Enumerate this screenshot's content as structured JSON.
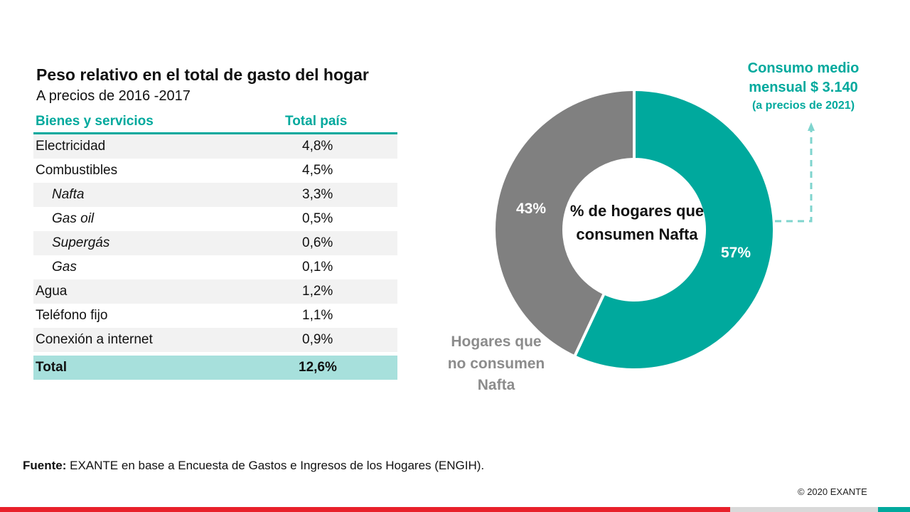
{
  "table": {
    "title": "Peso relativo en el total de gasto del hogar",
    "subtitle": "A precios de 2016 -2017",
    "headers": [
      "Bienes y servicios",
      "Total país"
    ],
    "rows": [
      {
        "label": "Electricidad",
        "value": "4,8%"
      },
      {
        "label": "Combustibles",
        "value": "4,5%"
      },
      {
        "label": "Nafta",
        "value": "3,3%"
      },
      {
        "label": "Gas oil",
        "value": "0,5%"
      },
      {
        "label": "Supergás",
        "value": "0,6%"
      },
      {
        "label": "Gas",
        "value": "0,1%"
      },
      {
        "label": "Agua",
        "value": "1,2%"
      },
      {
        "label": "Teléfono fijo",
        "value": "1,1%"
      },
      {
        "label": "Conexión a internet",
        "value": "0,9%"
      }
    ],
    "total": {
      "label": "Total",
      "value": "12,6%"
    }
  },
  "chart_data": {
    "type": "pie",
    "title": "% de hogares que consumen Nafta",
    "slices": [
      {
        "label": "57%",
        "value": 57,
        "color": "#00a99d"
      },
      {
        "label": "43%",
        "value": 43,
        "color": "#808080"
      }
    ],
    "annotations": {
      "non_consumers": "Hogares que no consumen Nafta",
      "callout_line1": "Consumo medio",
      "callout_line2": "mensual $ 3.140",
      "callout_line3": "(a precios de 2021)"
    }
  },
  "footer": {
    "source_label": "Fuente:",
    "source_text": "EXANTE en base a Encuesta de Gastos e Ingresos de los Hogares (ENGIH).",
    "copyright": "© 2020 EXANTE"
  },
  "colors": {
    "accent": "#00a99d",
    "accent_light": "#a7e0dc",
    "gray_slice": "#808080",
    "label_gray": "#8c8c8c",
    "brand_red": "#e8202a",
    "row_alt": "#f2f2f2"
  }
}
